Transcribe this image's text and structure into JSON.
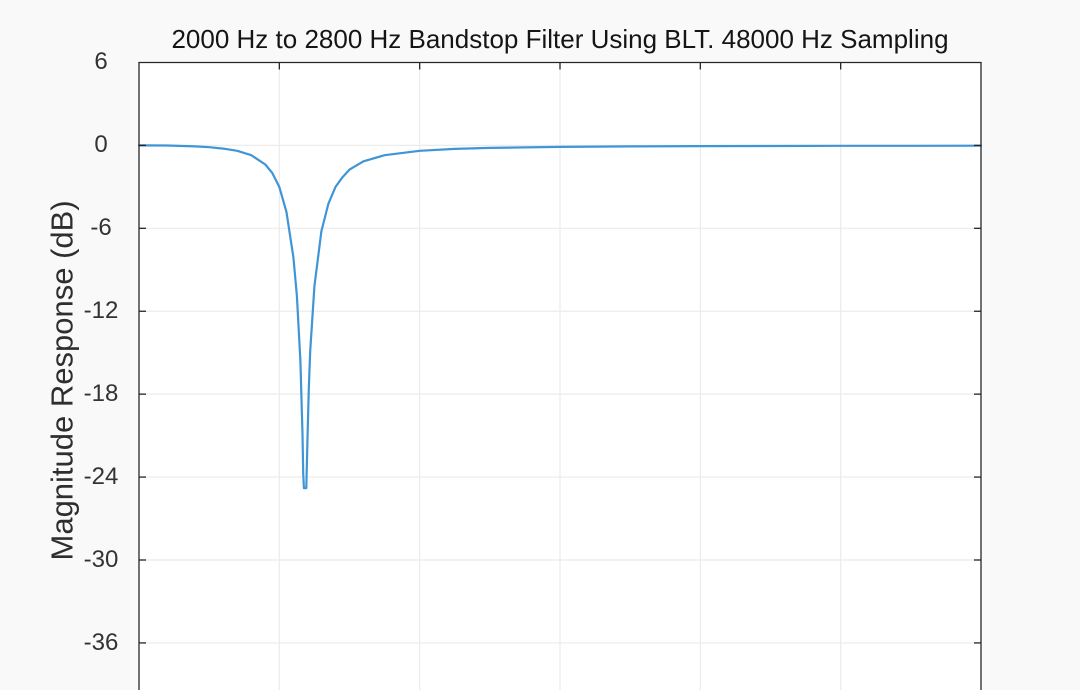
{
  "figure": {
    "title": "2000 Hz to 2800 Hz Bandstop Filter Using BLT. 48000 Hz Sampling",
    "y_axis_label": "Magnitude Response (dB)"
  },
  "colors": {
    "figure_background": "#f9f9f9",
    "plot_background": "#ffffff",
    "grid_line": "#ebebeb",
    "axis_line": "#262626",
    "curve": "#3f95d5",
    "title_text": "#151515",
    "tick_label_text": "#333333"
  },
  "chart_data": {
    "type": "line",
    "title": "2000 Hz to 2800 Hz Bandstop Filter Using BLT. 48000 Hz Sampling",
    "xlabel": "",
    "ylabel": "Magnitude Response (dB)",
    "x_unit": "Hz",
    "y_unit": "dB",
    "xlim": [
      0,
      12000
    ],
    "ylim_visible": [
      -39,
      6
    ],
    "y_ticks": [
      6,
      0,
      -6,
      -12,
      -18,
      -24,
      -30,
      -36
    ],
    "x_gridlines_hz": [
      2000,
      4000,
      6000,
      8000,
      10000
    ],
    "grid": true,
    "legend": "none",
    "x_axis_labels_visible": false,
    "bottom_edge_cut_off": true,
    "notch_center_hz": 2366,
    "notch_min_db": -24.8,
    "passband_db": 0,
    "series": [
      {
        "name": "magnitude-response",
        "color": "#3f95d5",
        "x_hz": [
          0,
          400,
          800,
          1000,
          1200,
          1400,
          1600,
          1800,
          1900,
          2000,
          2100,
          2200,
          2250,
          2300,
          2330,
          2340,
          2350,
          2370,
          2385,
          2400,
          2420,
          2440,
          2500,
          2600,
          2700,
          2800,
          2900,
          3000,
          3200,
          3500,
          4000,
          4500,
          5000,
          6000,
          7000,
          8000,
          9000,
          10000,
          11000,
          12000
        ],
        "y_db": [
          0,
          -0.01,
          -0.07,
          -0.13,
          -0.23,
          -0.39,
          -0.71,
          -1.38,
          -2.0,
          -3.0,
          -4.8,
          -8.1,
          -10.9,
          -15.6,
          -20.9,
          -23.7,
          -24.8,
          -24.8,
          -24.8,
          -21.5,
          -17.6,
          -14.9,
          -10.2,
          -6.2,
          -4.2,
          -3.0,
          -2.3,
          -1.75,
          -1.15,
          -0.71,
          -0.39,
          -0.25,
          -0.18,
          -0.11,
          -0.07,
          -0.05,
          -0.04,
          -0.03,
          -0.03,
          -0.02
        ]
      }
    ]
  }
}
